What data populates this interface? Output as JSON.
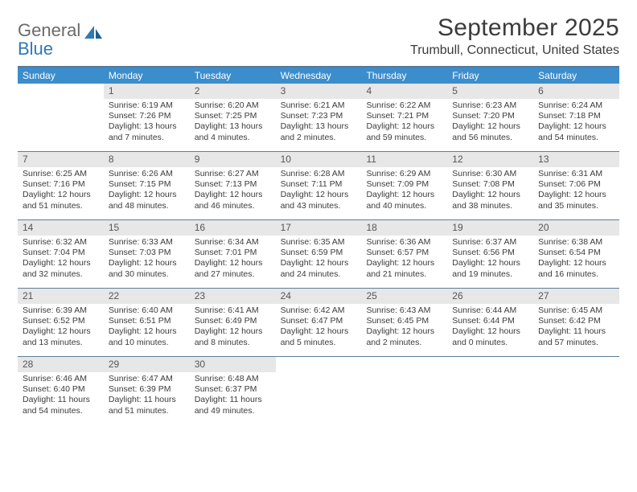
{
  "logo": {
    "line1": "General",
    "line2": "Blue"
  },
  "title": "September 2025",
  "location": "Trumbull, Connecticut, United States",
  "colors": {
    "header_bar": "#3c8dcc",
    "border": "#5d7e98",
    "daynum_bg": "#e7e7e7",
    "text": "#3b3b3b",
    "logo_gray": "#6a6a6a",
    "logo_blue": "#2f79b6"
  },
  "weekdays": [
    "Sunday",
    "Monday",
    "Tuesday",
    "Wednesday",
    "Thursday",
    "Friday",
    "Saturday"
  ],
  "weeks": [
    [
      null,
      {
        "n": "1",
        "sr": "Sunrise: 6:19 AM",
        "ss": "Sunset: 7:26 PM",
        "dl": "Daylight: 13 hours and 7 minutes."
      },
      {
        "n": "2",
        "sr": "Sunrise: 6:20 AM",
        "ss": "Sunset: 7:25 PM",
        "dl": "Daylight: 13 hours and 4 minutes."
      },
      {
        "n": "3",
        "sr": "Sunrise: 6:21 AM",
        "ss": "Sunset: 7:23 PM",
        "dl": "Daylight: 13 hours and 2 minutes."
      },
      {
        "n": "4",
        "sr": "Sunrise: 6:22 AM",
        "ss": "Sunset: 7:21 PM",
        "dl": "Daylight: 12 hours and 59 minutes."
      },
      {
        "n": "5",
        "sr": "Sunrise: 6:23 AM",
        "ss": "Sunset: 7:20 PM",
        "dl": "Daylight: 12 hours and 56 minutes."
      },
      {
        "n": "6",
        "sr": "Sunrise: 6:24 AM",
        "ss": "Sunset: 7:18 PM",
        "dl": "Daylight: 12 hours and 54 minutes."
      }
    ],
    [
      {
        "n": "7",
        "sr": "Sunrise: 6:25 AM",
        "ss": "Sunset: 7:16 PM",
        "dl": "Daylight: 12 hours and 51 minutes."
      },
      {
        "n": "8",
        "sr": "Sunrise: 6:26 AM",
        "ss": "Sunset: 7:15 PM",
        "dl": "Daylight: 12 hours and 48 minutes."
      },
      {
        "n": "9",
        "sr": "Sunrise: 6:27 AM",
        "ss": "Sunset: 7:13 PM",
        "dl": "Daylight: 12 hours and 46 minutes."
      },
      {
        "n": "10",
        "sr": "Sunrise: 6:28 AM",
        "ss": "Sunset: 7:11 PM",
        "dl": "Daylight: 12 hours and 43 minutes."
      },
      {
        "n": "11",
        "sr": "Sunrise: 6:29 AM",
        "ss": "Sunset: 7:09 PM",
        "dl": "Daylight: 12 hours and 40 minutes."
      },
      {
        "n": "12",
        "sr": "Sunrise: 6:30 AM",
        "ss": "Sunset: 7:08 PM",
        "dl": "Daylight: 12 hours and 38 minutes."
      },
      {
        "n": "13",
        "sr": "Sunrise: 6:31 AM",
        "ss": "Sunset: 7:06 PM",
        "dl": "Daylight: 12 hours and 35 minutes."
      }
    ],
    [
      {
        "n": "14",
        "sr": "Sunrise: 6:32 AM",
        "ss": "Sunset: 7:04 PM",
        "dl": "Daylight: 12 hours and 32 minutes."
      },
      {
        "n": "15",
        "sr": "Sunrise: 6:33 AM",
        "ss": "Sunset: 7:03 PM",
        "dl": "Daylight: 12 hours and 30 minutes."
      },
      {
        "n": "16",
        "sr": "Sunrise: 6:34 AM",
        "ss": "Sunset: 7:01 PM",
        "dl": "Daylight: 12 hours and 27 minutes."
      },
      {
        "n": "17",
        "sr": "Sunrise: 6:35 AM",
        "ss": "Sunset: 6:59 PM",
        "dl": "Daylight: 12 hours and 24 minutes."
      },
      {
        "n": "18",
        "sr": "Sunrise: 6:36 AM",
        "ss": "Sunset: 6:57 PM",
        "dl": "Daylight: 12 hours and 21 minutes."
      },
      {
        "n": "19",
        "sr": "Sunrise: 6:37 AM",
        "ss": "Sunset: 6:56 PM",
        "dl": "Daylight: 12 hours and 19 minutes."
      },
      {
        "n": "20",
        "sr": "Sunrise: 6:38 AM",
        "ss": "Sunset: 6:54 PM",
        "dl": "Daylight: 12 hours and 16 minutes."
      }
    ],
    [
      {
        "n": "21",
        "sr": "Sunrise: 6:39 AM",
        "ss": "Sunset: 6:52 PM",
        "dl": "Daylight: 12 hours and 13 minutes."
      },
      {
        "n": "22",
        "sr": "Sunrise: 6:40 AM",
        "ss": "Sunset: 6:51 PM",
        "dl": "Daylight: 12 hours and 10 minutes."
      },
      {
        "n": "23",
        "sr": "Sunrise: 6:41 AM",
        "ss": "Sunset: 6:49 PM",
        "dl": "Daylight: 12 hours and 8 minutes."
      },
      {
        "n": "24",
        "sr": "Sunrise: 6:42 AM",
        "ss": "Sunset: 6:47 PM",
        "dl": "Daylight: 12 hours and 5 minutes."
      },
      {
        "n": "25",
        "sr": "Sunrise: 6:43 AM",
        "ss": "Sunset: 6:45 PM",
        "dl": "Daylight: 12 hours and 2 minutes."
      },
      {
        "n": "26",
        "sr": "Sunrise: 6:44 AM",
        "ss": "Sunset: 6:44 PM",
        "dl": "Daylight: 12 hours and 0 minutes."
      },
      {
        "n": "27",
        "sr": "Sunrise: 6:45 AM",
        "ss": "Sunset: 6:42 PM",
        "dl": "Daylight: 11 hours and 57 minutes."
      }
    ],
    [
      {
        "n": "28",
        "sr": "Sunrise: 6:46 AM",
        "ss": "Sunset: 6:40 PM",
        "dl": "Daylight: 11 hours and 54 minutes."
      },
      {
        "n": "29",
        "sr": "Sunrise: 6:47 AM",
        "ss": "Sunset: 6:39 PM",
        "dl": "Daylight: 11 hours and 51 minutes."
      },
      {
        "n": "30",
        "sr": "Sunrise: 6:48 AM",
        "ss": "Sunset: 6:37 PM",
        "dl": "Daylight: 11 hours and 49 minutes."
      },
      null,
      null,
      null,
      null
    ]
  ]
}
